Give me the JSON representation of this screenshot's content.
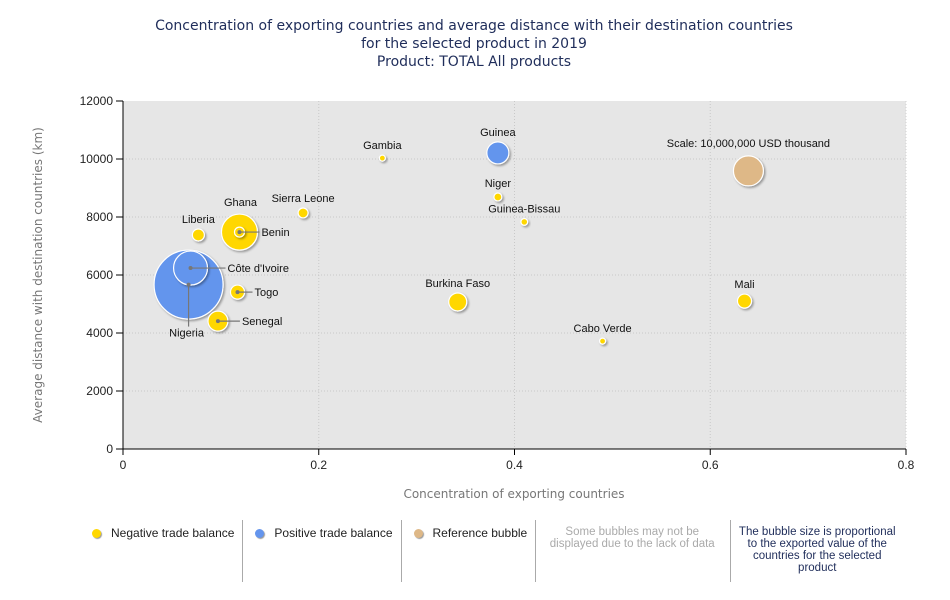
{
  "title_lines": [
    "Concentration of exporting countries and average distance with their destination countries",
    "for the selected product in 2019",
    "Product: TOTAL All products"
  ],
  "legend": {
    "items": [
      {
        "label": "Negative trade balance",
        "color": "#ffd700"
      },
      {
        "label": "Positive trade balance",
        "color": "#6495ed"
      },
      {
        "label": "Reference bubble",
        "color": "#deb887"
      }
    ],
    "note_missing": "Some bubbles may not be displayed due to the lack of data",
    "note_size": "The bubble size is proportional to the exported value of the countries for the selected product"
  },
  "chart_data": {
    "type": "scatter",
    "subtype": "bubble",
    "title": "Concentration of exporting countries and average distance with their destination countries for the selected product in 2019 — Product: TOTAL All products",
    "xlabel": "Concentration of exporting countries",
    "ylabel": "Average distance with destination countries (km)",
    "xlim": [
      0,
      0.8
    ],
    "ylim": [
      0,
      12000
    ],
    "xticks": [
      "0",
      "0.2",
      "0.4",
      "0.6",
      "0.8"
    ],
    "yticks": [
      "0",
      "2000",
      "4000",
      "6000",
      "8000",
      "10000",
      "12000"
    ],
    "grid": true,
    "size_unit": "USD thousand (exported value)",
    "reference": {
      "label": "Scale: 10,000,000 USD thousand",
      "x": 0.639,
      "y": 9590,
      "size": 10000000,
      "color": "#deb887"
    },
    "series": [
      {
        "name": "Negative trade balance",
        "color": "#ffd700",
        "points": [
          {
            "label": "Ghana",
            "x": 0.119,
            "y": 7480,
            "size": 14400000
          },
          {
            "label": "Benin",
            "x": 0.119,
            "y": 7480,
            "size": 1100000
          },
          {
            "label": "Liberia",
            "x": 0.077,
            "y": 7380,
            "size": 1600000
          },
          {
            "label": "Sierra Leone",
            "x": 0.184,
            "y": 8140,
            "size": 1100000
          },
          {
            "label": "Gambia",
            "x": 0.265,
            "y": 10030,
            "size": 400000
          },
          {
            "label": "Niger",
            "x": 0.383,
            "y": 8690,
            "size": 700000
          },
          {
            "label": "Guinea-Bissau",
            "x": 0.41,
            "y": 7830,
            "size": 500000
          },
          {
            "label": "Togo",
            "x": 0.117,
            "y": 5410,
            "size": 2200000
          },
          {
            "label": "Senegal",
            "x": 0.097,
            "y": 4410,
            "size": 4400000
          },
          {
            "label": "Burkina Faso",
            "x": 0.342,
            "y": 5070,
            "size": 3600000
          },
          {
            "label": "Cabo Verde",
            "x": 0.49,
            "y": 3720,
            "size": 400000
          },
          {
            "label": "Mali",
            "x": 0.635,
            "y": 5100,
            "size": 2200000
          }
        ]
      },
      {
        "name": "Positive trade balance",
        "color": "#6495ed",
        "points": [
          {
            "label": "Nigeria",
            "x": 0.067,
            "y": 5670,
            "size": 52900000
          },
          {
            "label": "Côte d'Ivoire",
            "x": 0.069,
            "y": 6240,
            "size": 12800000
          },
          {
            "label": "Guinea",
            "x": 0.383,
            "y": 10210,
            "size": 5400000
          }
        ]
      }
    ]
  }
}
